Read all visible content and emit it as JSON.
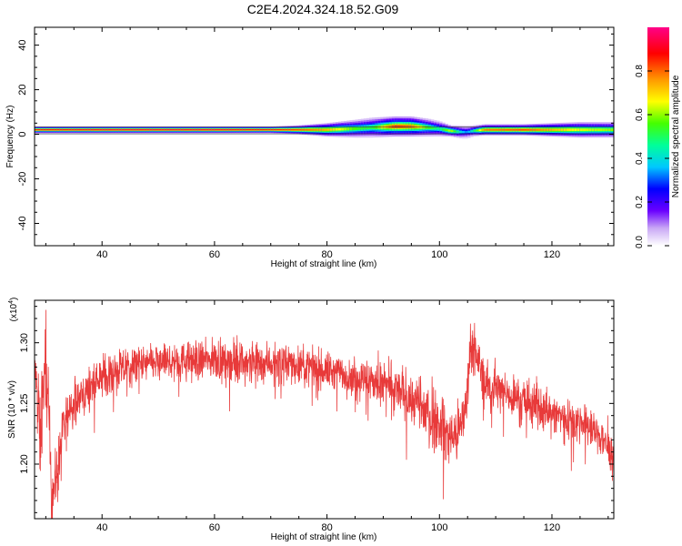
{
  "title": "C2E4.2024.324.18.52.G09",
  "chart_data": [
    {
      "type": "heatmap",
      "xlabel": "Height of straight line (km)",
      "ylabel": "Frequency (Hz)",
      "xlim": [
        28,
        131
      ],
      "ylim": [
        -50,
        48
      ],
      "xticks": [
        40,
        60,
        80,
        100,
        120
      ],
      "yticks": [
        40,
        20,
        0,
        -20,
        -40
      ],
      "colorbar": {
        "label": "Normalized spectral amplitude",
        "range": [
          0.0,
          1.0
        ],
        "ticks": [
          "0.0",
          "0.2",
          "0.4",
          "0.6",
          "0.8"
        ]
      },
      "ridge": {
        "note_units": "x in km, frequency in Hz, amplitude normalized",
        "x": [
          28,
          40,
          60,
          70,
          75,
          80,
          85,
          88,
          92,
          95,
          98,
          100,
          102,
          104,
          105,
          106,
          108,
          115,
          120,
          125,
          131
        ],
        "frequency": [
          2,
          2,
          2,
          2,
          2,
          2,
          2.5,
          3,
          3.5,
          3.5,
          3,
          2.5,
          1.5,
          1,
          1,
          1.5,
          2,
          2,
          2,
          2,
          2
        ],
        "amplitude": [
          0.95,
          1.0,
          1.0,
          0.95,
          0.9,
          0.8,
          0.6,
          0.55,
          0.9,
          0.85,
          0.6,
          0.5,
          0.7,
          0.4,
          0.35,
          0.5,
          0.85,
          0.9,
          0.8,
          0.7,
          0.65
        ],
        "halfwidth": [
          1.5,
          1.5,
          1.5,
          1.5,
          2,
          3,
          4,
          4.5,
          4.5,
          4.5,
          4,
          3.5,
          2.5,
          3,
          3,
          2.5,
          2.5,
          2.5,
          3,
          3.5,
          3.5
        ]
      }
    },
    {
      "type": "line",
      "xlabel": "Height of straight line (km)",
      "ylabel": "SNR (10 * v/v)",
      "yscale_label": "(x10",
      "yscale_exp": "4",
      "xlim": [
        28,
        131
      ],
      "ylim": [
        1.155,
        1.335
      ],
      "xticks": [
        40,
        60,
        80,
        100,
        120
      ],
      "yticks": [
        "1.30",
        "1.25",
        "1.20"
      ],
      "yticks_values": [
        1.3,
        1.25,
        1.2
      ],
      "color": "#e83a3a",
      "trend": {
        "x": [
          28,
          29,
          30,
          31,
          32,
          33,
          34,
          36,
          40,
          45,
          50,
          55,
          60,
          65,
          70,
          75,
          80,
          85,
          88,
          92,
          95,
          97,
          99,
          101,
          102,
          103,
          104,
          105,
          105.5,
          106,
          108,
          110,
          115,
          120,
          125,
          128,
          131
        ],
        "y": [
          1.285,
          1.22,
          1.29,
          1.18,
          1.19,
          1.22,
          1.245,
          1.255,
          1.272,
          1.28,
          1.284,
          1.285,
          1.286,
          1.285,
          1.284,
          1.282,
          1.277,
          1.272,
          1.268,
          1.262,
          1.255,
          1.245,
          1.236,
          1.228,
          1.222,
          1.225,
          1.232,
          1.262,
          1.298,
          1.3,
          1.268,
          1.262,
          1.252,
          1.242,
          1.235,
          1.225,
          1.21
        ],
        "noise": [
          0.01,
          0.03,
          0.03,
          0.025,
          0.02,
          0.02,
          0.015,
          0.012,
          0.012,
          0.012,
          0.012,
          0.012,
          0.012,
          0.012,
          0.012,
          0.012,
          0.012,
          0.012,
          0.014,
          0.015,
          0.016,
          0.016,
          0.017,
          0.018,
          0.018,
          0.018,
          0.016,
          0.015,
          0.014,
          0.014,
          0.013,
          0.013,
          0.013,
          0.013,
          0.013,
          0.013,
          0.013
        ]
      }
    }
  ]
}
